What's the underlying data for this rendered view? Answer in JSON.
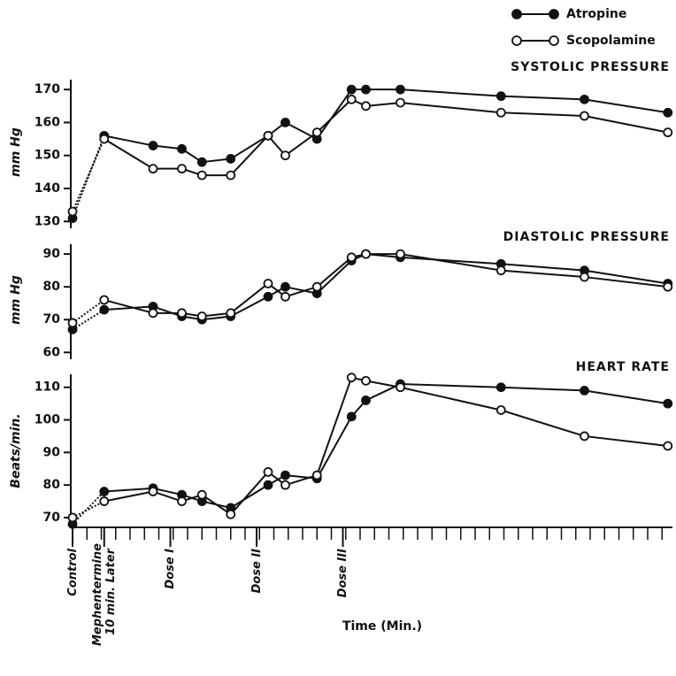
{
  "chart_data": [
    {
      "type": "line",
      "title": "SYSTOLIC PRESSURE",
      "y_label": "mm Hg",
      "x": [
        0,
        11,
        28,
        38,
        45,
        55,
        68,
        74,
        85,
        97,
        102,
        114,
        149,
        178,
        207
      ],
      "xlim": [
        0,
        208
      ],
      "series": [
        {
          "name": "Atropine",
          "color": "#111111",
          "marker": "filled",
          "values": [
            131,
            156,
            153,
            152,
            148,
            149,
            156,
            160,
            155,
            170,
            170,
            170,
            168,
            167,
            163
          ]
        },
        {
          "name": "Scopolamine",
          "color": "#111111",
          "marker": "open",
          "values": [
            133,
            155,
            146,
            146,
            144,
            144,
            156,
            150,
            157,
            167,
            165,
            166,
            163,
            162,
            157
          ]
        }
      ],
      "ylim": [
        129,
        173
      ],
      "yticks": [
        130,
        140,
        150,
        160,
        170
      ]
    },
    {
      "type": "line",
      "title": "DIASTOLIC PRESSURE",
      "y_label": "mm Hg",
      "x": [
        0,
        11,
        28,
        38,
        45,
        55,
        68,
        74,
        85,
        97,
        102,
        114,
        149,
        178,
        207
      ],
      "xlim": [
        0,
        208
      ],
      "series": [
        {
          "name": "Atropine",
          "color": "#111111",
          "marker": "filled",
          "values": [
            67,
            73,
            74,
            71,
            70,
            71,
            77,
            80,
            78,
            88,
            90,
            89,
            87,
            85,
            81
          ]
        },
        {
          "name": "Scopolamine",
          "color": "#111111",
          "marker": "open",
          "values": [
            69,
            76,
            72,
            72,
            71,
            72,
            81,
            77,
            80,
            89,
            90,
            90,
            85,
            83,
            80
          ]
        }
      ],
      "ylim": [
        59,
        93
      ],
      "yticks": [
        60,
        70,
        80,
        90
      ]
    },
    {
      "type": "line",
      "title": "HEART RATE",
      "y_label": "Beats/min.",
      "x_label": "Time (Min.)",
      "x": [
        0,
        11,
        28,
        38,
        45,
        55,
        68,
        74,
        85,
        97,
        102,
        114,
        149,
        178,
        207
      ],
      "xlim": [
        0,
        208
      ],
      "xticks": [
        {
          "value": 0,
          "label": "Control"
        },
        {
          "value": 11,
          "label": "Mephentermine 10 min. Later"
        },
        {
          "value": 34,
          "label": "Dose I"
        },
        {
          "value": 64,
          "label": "Dose II"
        },
        {
          "value": 94,
          "label": "Dose III"
        }
      ],
      "series": [
        {
          "name": "Atropine",
          "color": "#111111",
          "marker": "filled",
          "values": [
            68,
            78,
            79,
            77,
            75,
            73,
            80,
            83,
            82,
            101,
            106,
            111,
            110,
            109,
            105
          ]
        },
        {
          "name": "Scopolamine",
          "color": "#111111",
          "marker": "open",
          "values": [
            70,
            75,
            78,
            75,
            77,
            71,
            84,
            80,
            83,
            113,
            112,
            110,
            103,
            95,
            92
          ]
        }
      ],
      "ylim": [
        67,
        114
      ],
      "yticks": [
        70,
        80,
        90,
        100,
        110
      ]
    }
  ]
}
